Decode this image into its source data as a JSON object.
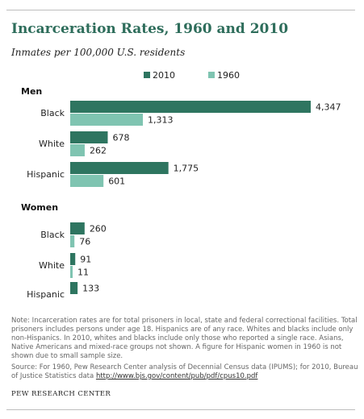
{
  "title": "Incarceration Rates, 1960 and 2010",
  "subtitle": "Inmates per 100,000 U.S. residents",
  "colors": {
    "2010": "#2e7560",
    "1960": "#7fc4b1"
  },
  "legend": [
    "2010",
    "1960"
  ],
  "chart_data": {
    "type": "bar",
    "orientation": "horizontal",
    "legend_position": "top",
    "xlim": [
      0,
      4347
    ],
    "grid": false,
    "groups": [
      {
        "label": "Men",
        "categories": [
          "Black",
          "White",
          "Hispanic"
        ],
        "series": [
          {
            "name": "2010",
            "values": [
              4347,
              678,
              1775
            ],
            "labels": [
              "4,347",
              "678",
              "1,775"
            ]
          },
          {
            "name": "1960",
            "values": [
              1313,
              262,
              601
            ],
            "labels": [
              "1,313",
              "262",
              "601"
            ]
          }
        ]
      },
      {
        "label": "Women",
        "categories": [
          "Black",
          "White",
          "Hispanic"
        ],
        "series": [
          {
            "name": "2010",
            "values": [
              260,
              91,
              133
            ],
            "labels": [
              "260",
              "91",
              "133"
            ]
          },
          {
            "name": "1960",
            "values": [
              76,
              11,
              null
            ],
            "labels": [
              "76",
              "11",
              ""
            ]
          }
        ]
      }
    ]
  },
  "note": "Note: Incarceration rates are for total prisoners in local, state and federal correctional facilities. Total prisoners includes persons under age 18. Hispanics are of any race. Whites and blacks include only non-Hispanics. In 2010, whites and blacks include only those who reported a single race. Asians, Native Americans and mixed-race groups not shown. A figure for Hispanic women in 1960 is not shown due to small sample size.",
  "source_text": "Source: For 1960, Pew Research Center analysis of Decennial Census data (IPUMS);  for 2010, Bureau of Justice Statistics data",
  "source_link": "http://www.bjs.gov/content/pub/pdf/cpus10.pdf",
  "footer": "PEW RESEARCH CENTER"
}
